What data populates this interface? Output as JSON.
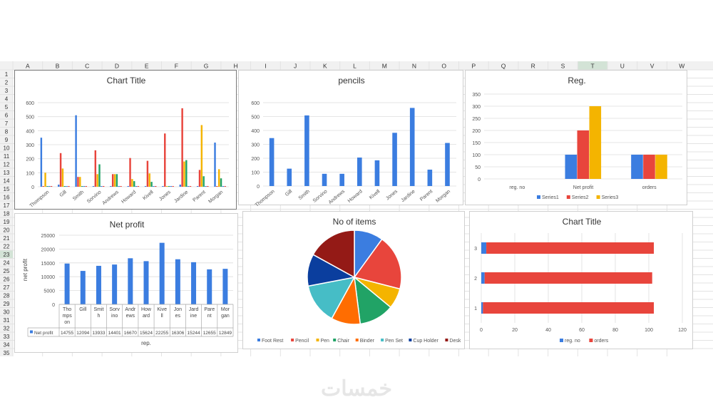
{
  "spreadsheet": {
    "columns": [
      "A",
      "B",
      "C",
      "D",
      "E",
      "F",
      "G",
      "H",
      "I",
      "J",
      "K",
      "L",
      "M",
      "N",
      "O",
      "P",
      "Q",
      "R",
      "S",
      "T",
      "U",
      "V",
      "W"
    ],
    "rows": [
      "1",
      "2",
      "3",
      "4",
      "5",
      "6",
      "7",
      "8",
      "9",
      "10",
      "11",
      "12",
      "13",
      "14",
      "15",
      "16",
      "17",
      "18",
      "19",
      "20",
      "21",
      "22",
      "23",
      "24",
      "25",
      "26",
      "27",
      "28",
      "29",
      "30",
      "31",
      "32",
      "33",
      "34",
      "35"
    ],
    "selected_column": "T",
    "selected_row": "23"
  },
  "watermark": {
    "text": "خمسات",
    "color": "#e6e6e6"
  },
  "chart_data": [
    {
      "id": "c1",
      "type": "bar",
      "title": "Chart Title",
      "categories": [
        "Thompson",
        "Gill",
        "Smith",
        "Sorvino",
        "Andrews",
        "Howard",
        "Kivell",
        "Jones",
        "Jardine",
        "Parent",
        "Morgan"
      ],
      "series": [
        {
          "values": [
            350,
            15,
            510,
            5,
            5,
            5,
            5,
            5,
            15,
            5,
            315
          ],
          "color": "#3b7de0"
        },
        {
          "values": [
            5,
            240,
            70,
            260,
            90,
            205,
            185,
            380,
            560,
            120,
            5
          ],
          "color": "#e8453c"
        },
        {
          "values": [
            100,
            130,
            70,
            90,
            90,
            55,
            95,
            5,
            180,
            440,
            125
          ],
          "color": "#f4b400"
        },
        {
          "values": [
            5,
            5,
            5,
            160,
            90,
            40,
            35,
            5,
            190,
            75,
            60
          ],
          "color": "#21a366"
        },
        {
          "values": [
            5,
            5,
            5,
            5,
            5,
            5,
            5,
            5,
            5,
            5,
            5
          ],
          "color": "#3b7de0"
        },
        {
          "values": [
            5,
            5,
            5,
            5,
            5,
            5,
            5,
            5,
            5,
            5,
            5
          ],
          "color": "#e8453c"
        }
      ],
      "ylim": [
        0,
        600
      ],
      "yticks": [
        0,
        100,
        200,
        300,
        400,
        500,
        600
      ]
    },
    {
      "id": "c2",
      "type": "bar",
      "title": "pencils",
      "categories": [
        "Thompson",
        "Gill",
        "Smith",
        "Sorvino",
        "Andrews",
        "Howard",
        "Kivell",
        "Jones",
        "Jardine",
        "Parent",
        "Morgan"
      ],
      "series": [
        {
          "values": [
            345,
            125,
            508,
            88,
            88,
            205,
            185,
            383,
            562,
            118,
            310
          ],
          "color": "#3b7de0"
        }
      ],
      "ylim": [
        0,
        600
      ],
      "yticks": [
        0,
        100,
        200,
        300,
        400,
        500,
        600
      ]
    },
    {
      "id": "c3",
      "type": "bar",
      "title": "Reg.",
      "categories": [
        "reg. no",
        "Net profit",
        "orders"
      ],
      "series": [
        {
          "name": "Series1",
          "values": [
            0,
            100,
            100
          ],
          "color": "#3b7de0"
        },
        {
          "name": "Series2",
          "values": [
            0,
            200,
            100
          ],
          "color": "#e8453c"
        },
        {
          "name": "Series3",
          "values": [
            0,
            300,
            100
          ],
          "color": "#f4b400"
        }
      ],
      "ylim": [
        0,
        350
      ],
      "yticks": [
        0,
        50,
        100,
        150,
        200,
        250,
        300,
        350
      ],
      "legend": "bottom"
    },
    {
      "id": "c4",
      "type": "bar",
      "title": "Net profit",
      "ylabel": "net profit",
      "xlabel": "rep.",
      "categories": [
        "Thompson",
        "Gill",
        "Smith",
        "Sorvino",
        "Andrews",
        "Howard",
        "Kivell",
        "Jones",
        "Jardine",
        "Parent",
        "Morgan"
      ],
      "category_wrapped": [
        [
          "Tho",
          "mps",
          "on"
        ],
        [
          "Gill"
        ],
        [
          "Smit",
          "h"
        ],
        [
          "Sorv",
          "ino"
        ],
        [
          "Andr",
          "ews"
        ],
        [
          "How",
          "ard"
        ],
        [
          "Kive",
          "ll"
        ],
        [
          "Jon",
          "es"
        ],
        [
          "Jard",
          "ine"
        ],
        [
          "Pare",
          "nt"
        ],
        [
          "Mor",
          "gan"
        ]
      ],
      "series": [
        {
          "name": "Net profit",
          "values": [
            14755,
            12094,
            13933,
            14401,
            16670,
            15624,
            22255,
            16306,
            15244,
            12655,
            12849
          ],
          "value_labels": [
            "14755",
            "12094",
            "13933",
            "14401",
            "16670",
            "15624",
            "22255",
            "16306",
            "15244",
            "12655",
            "12849"
          ],
          "color": "#3b7de0"
        }
      ],
      "ylim": [
        0,
        25000
      ],
      "yticks": [
        0,
        5000,
        10000,
        15000,
        20000,
        25000
      ],
      "data_table": true
    },
    {
      "id": "c5",
      "type": "pie",
      "title": "No of items",
      "slices": [
        {
          "name": "Foot Rest",
          "value": 10,
          "color": "#3b7de0"
        },
        {
          "name": "Pencil",
          "value": 19,
          "color": "#e8453c"
        },
        {
          "name": "Pen",
          "value": 7,
          "color": "#f4b400"
        },
        {
          "name": "Chair",
          "value": 12,
          "color": "#21a366"
        },
        {
          "name": "Binder",
          "value": 10,
          "color": "#ff6d01"
        },
        {
          "name": "Pen Set",
          "value": 14,
          "color": "#46bdc6"
        },
        {
          "name": "Cup Holder",
          "value": 11,
          "color": "#0b3e9e"
        },
        {
          "name": "Desk",
          "value": 17,
          "color": "#941a16"
        }
      ],
      "legend": "bottom"
    },
    {
      "id": "c6",
      "type": "bar",
      "orientation": "horizontal",
      "title": "Chart Title",
      "categories": [
        "1",
        "2",
        "3"
      ],
      "series": [
        {
          "name": "reg. no",
          "values": [
            1,
            2,
            3
          ],
          "color": "#3b7de0"
        },
        {
          "name": "orders",
          "values": [
            102,
            100,
            100
          ],
          "color": "#e8453c"
        }
      ],
      "stacked": true,
      "xlim": [
        0,
        120
      ],
      "xticks": [
        0,
        20,
        40,
        60,
        80,
        100,
        120
      ],
      "legend": "bottom"
    }
  ]
}
